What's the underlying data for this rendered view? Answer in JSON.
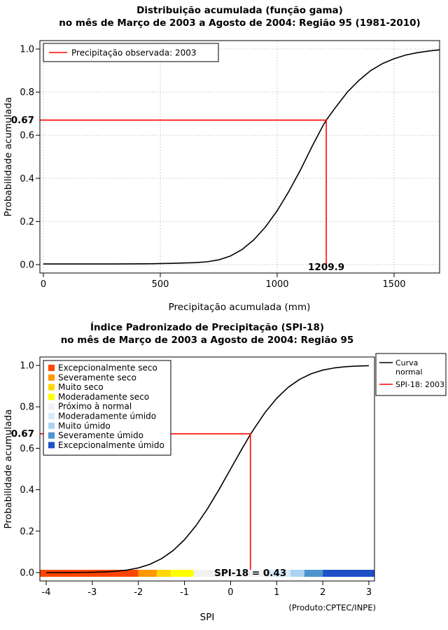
{
  "page": {
    "background": "#FFFFFF",
    "footnote": "(Produto:CPTEC/INPE)"
  },
  "chart_data": [
    {
      "type": "line",
      "title": "Distribuição acumulada (função gama)",
      "subtitle": "no mês de Março de 2003 a Agosto de 2004: Região 95 (1981-2010)",
      "xlabel": "Precipitação acumulada (mm)",
      "ylabel": "Probabilidade acumulada",
      "xlim": [
        0,
        1695
      ],
      "ylim": [
        0,
        1
      ],
      "x_ticks": [
        0,
        500,
        1000,
        1500
      ],
      "x_tick_labels": [
        "0",
        "500",
        "1000",
        "1500"
      ],
      "y_ticks": [
        0,
        0.2,
        0.4,
        0.6,
        0.8,
        1
      ],
      "y_tick_labels": [
        "0.0",
        "0.2",
        "0.4",
        "0.6",
        "0.8",
        "1.0"
      ],
      "grid": true,
      "legend": {
        "position": "top-left",
        "items": [
          {
            "label": "Precipitação observada: 2003",
            "color": "#FF0000"
          }
        ]
      },
      "series": [
        {
          "name": "gamma-cdf-curve",
          "color": "#000000",
          "points": [
            [
              0,
              0.003
            ],
            [
              150,
              0.003
            ],
            [
              300,
              0.003
            ],
            [
              450,
              0.004
            ],
            [
              550,
              0.006
            ],
            [
              650,
              0.009
            ],
            [
              700,
              0.013
            ],
            [
              750,
              0.022
            ],
            [
              800,
              0.04
            ],
            [
              850,
              0.07
            ],
            [
              900,
              0.115
            ],
            [
              950,
              0.175
            ],
            [
              1000,
              0.25
            ],
            [
              1050,
              0.34
            ],
            [
              1100,
              0.44
            ],
            [
              1150,
              0.55
            ],
            [
              1200,
              0.653
            ],
            [
              1209.9,
              0.67
            ],
            [
              1250,
              0.73
            ],
            [
              1300,
              0.8
            ],
            [
              1350,
              0.855
            ],
            [
              1400,
              0.9
            ],
            [
              1450,
              0.932
            ],
            [
              1500,
              0.955
            ],
            [
              1550,
              0.972
            ],
            [
              1600,
              0.983
            ],
            [
              1650,
              0.991
            ],
            [
              1695,
              0.996
            ]
          ]
        }
      ],
      "marker": {
        "color": "#FF0000",
        "probability": 0.67,
        "probability_label": "0.67",
        "value": 1209.9,
        "value_label": "1209.9"
      }
    },
    {
      "type": "line",
      "title": "Índice Padronizado de Precipitação (SPI-18)",
      "subtitle": "no mês de Março de 2003 a Agosto de 2004: Região 95",
      "xlabel": "SPI",
      "ylabel": "Probabilidade acumulada",
      "xlim": [
        -4,
        3
      ],
      "ylim": [
        0,
        1
      ],
      "x_ticks": [
        -4,
        -3,
        -2,
        -1,
        0,
        1,
        2,
        3
      ],
      "x_tick_labels": [
        "-4",
        "-3",
        "-2",
        "-1",
        "0",
        "1",
        "2",
        "3"
      ],
      "y_ticks": [
        0,
        0.2,
        0.4,
        0.6,
        0.8,
        1
      ],
      "y_tick_labels": [
        "0.0",
        "0.2",
        "0.4",
        "0.6",
        "0.8",
        "1.0"
      ],
      "grid": false,
      "category_legend": {
        "position": "top-left",
        "items": [
          {
            "label": "Excepcionalmente seco",
            "color": "#FF4500"
          },
          {
            "label": "Severamente seco",
            "color": "#FF9900"
          },
          {
            "label": "Muito seco",
            "color": "#FFD700"
          },
          {
            "label": "Moderadamente seco",
            "color": "#FFFF00"
          },
          {
            "label": "Próximo à normal",
            "color": "#F2F2F2"
          },
          {
            "label": "Moderadamente úmido",
            "color": "#D8ECF8"
          },
          {
            "label": "Muito úmido",
            "color": "#AAD4F0"
          },
          {
            "label": "Severamente úmido",
            "color": "#4D94D0"
          },
          {
            "label": "Excepcionalmente úmido",
            "color": "#2050C8"
          }
        ]
      },
      "line_legend": {
        "position": "top-right",
        "items": [
          {
            "label_lines": [
              "Curva",
              "normal"
            ],
            "color": "#000000"
          },
          {
            "label_lines": [
              "SPI-18: 2003"
            ],
            "color": "#FF0000"
          }
        ]
      },
      "colorbar": {
        "segments": [
          {
            "from": -4,
            "to": -2,
            "color": "#FF4500"
          },
          {
            "from": -2,
            "to": -1.6,
            "color": "#FF9900"
          },
          {
            "from": -1.6,
            "to": -1.3,
            "color": "#FFD700"
          },
          {
            "from": -1.3,
            "to": -0.8,
            "color": "#FFFF00"
          },
          {
            "from": -0.8,
            "to": 0.8,
            "color": "#F2F2F2"
          },
          {
            "from": 0.8,
            "to": 1.3,
            "color": "#D8ECF8"
          },
          {
            "from": 1.3,
            "to": 1.6,
            "color": "#AAD4F0"
          },
          {
            "from": 1.6,
            "to": 2,
            "color": "#4D94D0"
          },
          {
            "from": 2,
            "to": 3,
            "color": "#2050C8"
          }
        ]
      },
      "series": [
        {
          "name": "normal-cdf-curve",
          "color": "#000000",
          "points": [
            [
              -4,
              0.0001
            ],
            [
              -3.5,
              0.0002
            ],
            [
              -3,
              0.0013
            ],
            [
              -2.75,
              0.003
            ],
            [
              -2.5,
              0.0062
            ],
            [
              -2.25,
              0.0122
            ],
            [
              -2,
              0.0228
            ],
            [
              -1.75,
              0.0401
            ],
            [
              -1.5,
              0.0668
            ],
            [
              -1.25,
              0.1056
            ],
            [
              -1,
              0.1587
            ],
            [
              -0.75,
              0.2266
            ],
            [
              -0.5,
              0.3085
            ],
            [
              -0.25,
              0.4013
            ],
            [
              0,
              0.5
            ],
            [
              0.25,
              0.5987
            ],
            [
              0.43,
              0.6664
            ],
            [
              0.5,
              0.6915
            ],
            [
              0.75,
              0.7734
            ],
            [
              1,
              0.8413
            ],
            [
              1.25,
              0.8944
            ],
            [
              1.5,
              0.9332
            ],
            [
              1.75,
              0.9599
            ],
            [
              2,
              0.9772
            ],
            [
              2.25,
              0.9878
            ],
            [
              2.5,
              0.9938
            ],
            [
              2.75,
              0.997
            ],
            [
              3,
              0.9987
            ]
          ]
        }
      ],
      "marker": {
        "color": "#FF0000",
        "probability": 0.67,
        "probability_label": "0.67",
        "value": 0.43,
        "value_label": "SPI-18 = 0.43"
      }
    }
  ]
}
